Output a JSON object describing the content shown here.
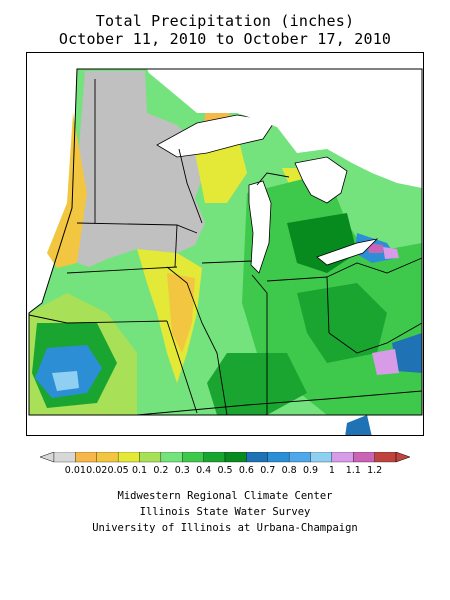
{
  "title": {
    "line1": "Total Precipitation (inches)",
    "line2": "October 11, 2010 to October 17, 2010"
  },
  "legend": {
    "items": [
      {
        "label": "0.01",
        "color": "#f7b84a"
      },
      {
        "label": "0.02",
        "color": "#f2c640"
      },
      {
        "label": "0.05",
        "color": "#e4e837"
      },
      {
        "label": "0.1",
        "color": "#a8e157"
      },
      {
        "label": "0.2",
        "color": "#74e37d"
      },
      {
        "label": "0.3",
        "color": "#3fc94c"
      },
      {
        "label": "0.4",
        "color": "#1aa531"
      },
      {
        "label": "0.5",
        "color": "#078a1e"
      },
      {
        "label": "0.6",
        "color": "#1f72b3"
      },
      {
        "label": "0.7",
        "color": "#2c8fd6"
      },
      {
        "label": "0.8",
        "color": "#4ea8ea"
      },
      {
        "label": "0.9",
        "color": "#8fd0f2"
      },
      {
        "label": "1",
        "color": "#d79be8"
      },
      {
        "label": "1.1",
        "color": "#c964b7"
      },
      {
        "label": "1.2",
        "color": "#c0443e"
      }
    ],
    "low_arrow_color": "#d8d8d8"
  },
  "colors": {
    "no_data": "#c0c0c0",
    "border": "#000000"
  },
  "credits": [
    "Midwestern Regional Climate Center",
    "Illinois State Water Survey",
    "University of Illinois at Urbana-Champaign"
  ]
}
